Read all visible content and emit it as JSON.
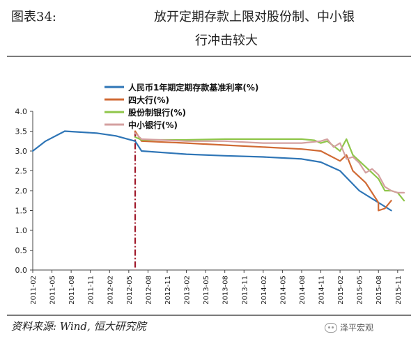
{
  "header": {
    "figure_label": "图表34:",
    "title_line1": "放开定期存款上限对股份制、中小银",
    "title_line2": "行冲击较大"
  },
  "footer": {
    "source": "资料来源: Wind, 恒大研究院",
    "watermark": "泽平宏观"
  },
  "chart_data": {
    "type": "line",
    "ylim": [
      0,
      4.0
    ],
    "yticks": [
      "0.0",
      "0.5",
      "1.0",
      "1.5",
      "2.0",
      "2.5",
      "3.0",
      "3.5",
      "4.0"
    ],
    "x_ticks": [
      "2011-02",
      "2011-05",
      "2011-08",
      "2011-11",
      "2012-02",
      "2012-05",
      "2012-08",
      "2012-11",
      "2013-02",
      "2013-05",
      "2013-08",
      "2013-11",
      "2014-02",
      "2014-05",
      "2014-08",
      "2014-11",
      "2015-02",
      "2015-05",
      "2015-08",
      "2015-11"
    ],
    "vline_at": "2012-06",
    "grid": false,
    "legend_position": "top",
    "series": [
      {
        "name": "人民币1年期定期存款基准利率(%)",
        "color": "#2e75b6",
        "points": [
          [
            "2011-02",
            3.0
          ],
          [
            "2011-04",
            3.25
          ],
          [
            "2011-07",
            3.5
          ],
          [
            "2011-12",
            3.45
          ],
          [
            "2012-03",
            3.38
          ],
          [
            "2012-06",
            3.25
          ],
          [
            "2012-07",
            3.0
          ],
          [
            "2013-02",
            2.92
          ],
          [
            "2013-08",
            2.88
          ],
          [
            "2014-02",
            2.85
          ],
          [
            "2014-08",
            2.8
          ],
          [
            "2014-11",
            2.72
          ],
          [
            "2015-02",
            2.5
          ],
          [
            "2015-05",
            2.0
          ],
          [
            "2015-07",
            1.8
          ],
          [
            "2015-10",
            1.5
          ]
        ]
      },
      {
        "name": "四大行(%)",
        "color": "#d06a34",
        "points": [
          [
            "2012-06",
            3.5
          ],
          [
            "2012-07",
            3.25
          ],
          [
            "2013-02",
            3.2
          ],
          [
            "2013-08",
            3.15
          ],
          [
            "2014-02",
            3.1
          ],
          [
            "2014-08",
            3.05
          ],
          [
            "2014-11",
            3.0
          ],
          [
            "2015-02",
            2.75
          ],
          [
            "2015-03",
            2.9
          ],
          [
            "2015-04",
            2.5
          ],
          [
            "2015-06",
            2.2
          ],
          [
            "2015-08",
            1.7
          ],
          [
            "2015-08",
            1.5
          ],
          [
            "2015-09",
            1.55
          ],
          [
            "2015-10",
            1.75
          ]
        ]
      },
      {
        "name": "股份制银行(%)",
        "color": "#8fc64a",
        "points": [
          [
            "2012-06",
            3.35
          ],
          [
            "2012-07",
            3.28
          ],
          [
            "2013-02",
            3.28
          ],
          [
            "2013-08",
            3.3
          ],
          [
            "2014-02",
            3.3
          ],
          [
            "2014-08",
            3.3
          ],
          [
            "2014-10",
            3.27
          ],
          [
            "2014-11",
            3.2
          ],
          [
            "2014-12",
            3.25
          ],
          [
            "2015-02",
            3.0
          ],
          [
            "2015-03",
            3.3
          ],
          [
            "2015-04",
            2.9
          ],
          [
            "2015-06",
            2.6
          ],
          [
            "2015-08",
            2.3
          ],
          [
            "2015-09",
            2.0
          ],
          [
            "2015-10",
            2.0
          ],
          [
            "2015-11",
            1.95
          ],
          [
            "2015-12",
            1.75
          ]
        ]
      },
      {
        "name": "中小银行(%)",
        "color": "#d4a0a0",
        "points": [
          [
            "2012-06",
            3.45
          ],
          [
            "2012-07",
            3.3
          ],
          [
            "2013-02",
            3.25
          ],
          [
            "2013-08",
            3.25
          ],
          [
            "2014-02",
            3.2
          ],
          [
            "2014-08",
            3.2
          ],
          [
            "2014-11",
            3.25
          ],
          [
            "2014-12",
            3.3
          ],
          [
            "2015-01",
            3.1
          ],
          [
            "2015-02",
            3.2
          ],
          [
            "2015-03",
            2.8
          ],
          [
            "2015-04",
            2.85
          ],
          [
            "2015-05",
            2.7
          ],
          [
            "2015-06",
            2.45
          ],
          [
            "2015-07",
            2.55
          ],
          [
            "2015-08",
            2.4
          ],
          [
            "2015-09",
            2.1
          ],
          [
            "2015-10",
            2.0
          ],
          [
            "2015-11",
            1.95
          ],
          [
            "2015-12",
            1.95
          ]
        ]
      }
    ]
  }
}
